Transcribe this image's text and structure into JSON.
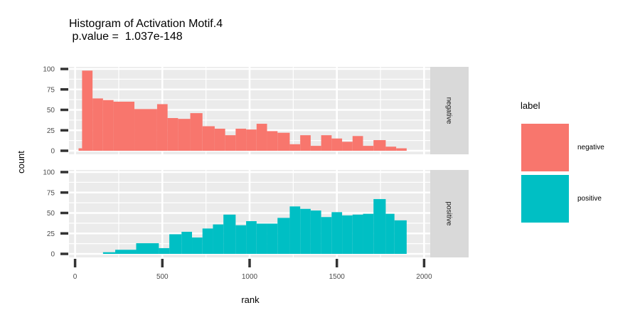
{
  "chart_data": {
    "type": "bar",
    "title_line1": "Histogram of Activation Motif.4",
    "title_line2": " p.value =  1.037e-148",
    "xlabel": "rank",
    "ylabel": "count",
    "xlim": [
      -35,
      2035
    ],
    "ylim": [
      0,
      100
    ],
    "x_ticks": [
      0,
      500,
      1000,
      1500,
      2000
    ],
    "x_tick_labels": [
      "0",
      "500",
      "1000",
      "1500",
      "2000"
    ],
    "y_ticks": [
      0,
      25,
      50,
      75,
      100
    ],
    "y_tick_labels": [
      "0",
      "25",
      "50",
      "75",
      "100"
    ],
    "bin_edges": [
      0,
      62.5,
      125,
      187.5,
      250,
      312.5,
      375,
      437.5,
      500,
      562.5,
      625,
      687.5,
      750,
      812.5,
      875,
      937.5,
      1000,
      1062.5,
      1125,
      1187.5,
      1250,
      1312.5,
      1375,
      1437.5,
      1500,
      1562.5,
      1625,
      1687.5,
      1750,
      1812.5,
      1875,
      1937.5,
      2000
    ],
    "legend_title": "label",
    "legend_position": "right",
    "grid": true,
    "series": [
      {
        "name": "negative",
        "color": "#F8766D",
        "bins": [
          {
            "x0": 20,
            "x1": 40,
            "count": 3
          },
          {
            "x0": 40,
            "x1": 100,
            "count": 98
          },
          {
            "x0": 100,
            "x1": 160,
            "count": 64
          },
          {
            "x0": 160,
            "x1": 220,
            "count": 62
          },
          {
            "x0": 220,
            "x1": 340,
            "count": 60
          },
          {
            "x0": 340,
            "x1": 470,
            "count": 51
          },
          {
            "x0": 470,
            "x1": 530,
            "count": 57
          },
          {
            "x0": 530,
            "x1": 590,
            "count": 40
          },
          {
            "x0": 590,
            "x1": 660,
            "count": 39
          },
          {
            "x0": 660,
            "x1": 730,
            "count": 46
          },
          {
            "x0": 730,
            "x1": 800,
            "count": 30
          },
          {
            "x0": 800,
            "x1": 860,
            "count": 27
          },
          {
            "x0": 860,
            "x1": 920,
            "count": 19
          },
          {
            "x0": 920,
            "x1": 980,
            "count": 27
          },
          {
            "x0": 980,
            "x1": 1040,
            "count": 26
          },
          {
            "x0": 1040,
            "x1": 1100,
            "count": 33
          },
          {
            "x0": 1100,
            "x1": 1160,
            "count": 24
          },
          {
            "x0": 1160,
            "x1": 1230,
            "count": 22
          },
          {
            "x0": 1230,
            "x1": 1290,
            "count": 8
          },
          {
            "x0": 1290,
            "x1": 1350,
            "count": 19
          },
          {
            "x0": 1350,
            "x1": 1410,
            "count": 6
          },
          {
            "x0": 1410,
            "x1": 1470,
            "count": 19
          },
          {
            "x0": 1470,
            "x1": 1530,
            "count": 15
          },
          {
            "x0": 1530,
            "x1": 1590,
            "count": 11
          },
          {
            "x0": 1590,
            "x1": 1650,
            "count": 18
          },
          {
            "x0": 1650,
            "x1": 1710,
            "count": 6
          },
          {
            "x0": 1710,
            "x1": 1780,
            "count": 13
          },
          {
            "x0": 1780,
            "x1": 1840,
            "count": 5
          },
          {
            "x0": 1840,
            "x1": 1900,
            "count": 3
          }
        ]
      },
      {
        "name": "positive",
        "color": "#00BFC4",
        "bins": [
          {
            "x0": 160,
            "x1": 230,
            "count": 2
          },
          {
            "x0": 230,
            "x1": 350,
            "count": 5
          },
          {
            "x0": 350,
            "x1": 480,
            "count": 13
          },
          {
            "x0": 480,
            "x1": 540,
            "count": 7
          },
          {
            "x0": 540,
            "x1": 610,
            "count": 24
          },
          {
            "x0": 610,
            "x1": 670,
            "count": 27
          },
          {
            "x0": 670,
            "x1": 730,
            "count": 20
          },
          {
            "x0": 730,
            "x1": 790,
            "count": 31
          },
          {
            "x0": 790,
            "x1": 850,
            "count": 36
          },
          {
            "x0": 850,
            "x1": 920,
            "count": 48
          },
          {
            "x0": 920,
            "x1": 980,
            "count": 35
          },
          {
            "x0": 980,
            "x1": 1040,
            "count": 40
          },
          {
            "x0": 1040,
            "x1": 1100,
            "count": 37
          },
          {
            "x0": 1100,
            "x1": 1160,
            "count": 37
          },
          {
            "x0": 1160,
            "x1": 1230,
            "count": 44
          },
          {
            "x0": 1230,
            "x1": 1290,
            "count": 58
          },
          {
            "x0": 1290,
            "x1": 1350,
            "count": 55
          },
          {
            "x0": 1350,
            "x1": 1410,
            "count": 53
          },
          {
            "x0": 1410,
            "x1": 1470,
            "count": 45
          },
          {
            "x0": 1470,
            "x1": 1530,
            "count": 51
          },
          {
            "x0": 1530,
            "x1": 1590,
            "count": 47
          },
          {
            "x0": 1590,
            "x1": 1650,
            "count": 48
          },
          {
            "x0": 1650,
            "x1": 1710,
            "count": 49
          },
          {
            "x0": 1710,
            "x1": 1780,
            "count": 67
          },
          {
            "x0": 1780,
            "x1": 1830,
            "count": 49
          },
          {
            "x0": 1830,
            "x1": 1900,
            "count": 41
          }
        ]
      }
    ]
  }
}
